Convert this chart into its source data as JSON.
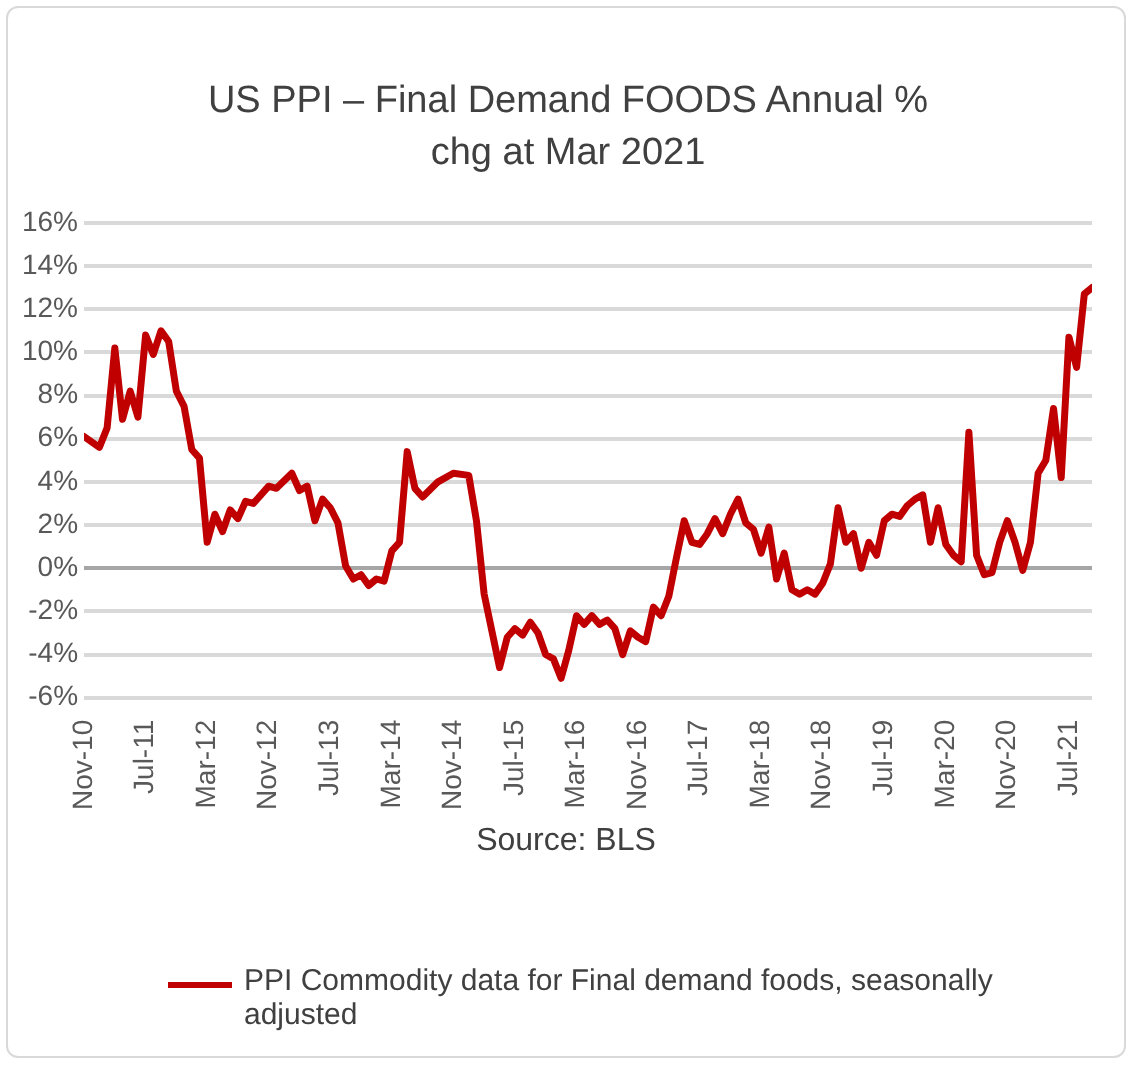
{
  "chart_data": {
    "type": "line",
    "title": "US PPI – Final Demand FOODS Annual % chg at Mar 2021",
    "annotations": [
      "Source: BLS"
    ],
    "x": [
      "2010-11",
      "2011-01",
      "2011-02",
      "2011-03",
      "2011-04",
      "2011-05",
      "2011-06",
      "2011-07",
      "2011-08",
      "2011-09",
      "2011-10",
      "2011-11",
      "2011-12",
      "2012-01",
      "2012-02",
      "2012-03",
      "2012-04",
      "2012-05",
      "2012-06",
      "2012-07",
      "2012-08",
      "2012-09",
      "2012-11",
      "2012-12",
      "2013-02",
      "2013-03",
      "2013-04",
      "2013-05",
      "2013-06",
      "2013-07",
      "2013-08",
      "2013-09",
      "2013-10",
      "2013-11",
      "2013-12",
      "2014-01",
      "2014-02",
      "2014-03",
      "2014-04",
      "2014-05",
      "2014-06",
      "2014-07",
      "2014-09",
      "2014-11",
      "2015-01",
      "2015-02",
      "2015-03",
      "2015-05",
      "2015-06",
      "2015-07",
      "2015-08",
      "2015-09",
      "2015-10",
      "2015-11",
      "2015-12",
      "2016-01",
      "2016-02",
      "2016-03",
      "2016-04",
      "2016-05",
      "2016-06",
      "2016-07",
      "2016-08",
      "2016-09",
      "2016-10",
      "2016-11",
      "2016-12",
      "2017-01",
      "2017-02",
      "2017-03",
      "2017-04",
      "2017-05",
      "2017-06",
      "2017-07",
      "2017-08",
      "2017-09",
      "2017-10",
      "2017-11",
      "2017-12",
      "2018-01",
      "2018-02",
      "2018-03",
      "2018-04",
      "2018-05",
      "2018-06",
      "2018-07",
      "2018-08",
      "2018-09",
      "2018-10",
      "2018-11",
      "2018-12",
      "2019-01",
      "2019-02",
      "2019-03",
      "2019-04",
      "2019-05",
      "2019-06",
      "2019-07",
      "2019-08",
      "2019-09",
      "2019-10",
      "2019-11",
      "2019-12",
      "2020-01",
      "2020-02",
      "2020-03",
      "2020-04",
      "2020-05",
      "2020-06",
      "2020-07",
      "2020-08",
      "2020-09",
      "2020-10",
      "2020-11",
      "2020-12",
      "2021-01",
      "2021-02",
      "2021-03",
      "2021-04",
      "2021-05",
      "2021-06",
      "2021-07",
      "2021-08",
      "2021-09",
      "2021-10"
    ],
    "series": [
      {
        "name": "PPI Commodity data for Final demand foods, seasonally adjusted",
        "color": "#c00000",
        "values": [
          6.1,
          5.6,
          6.5,
          10.2,
          6.9,
          8.2,
          7.0,
          10.8,
          9.9,
          11.0,
          10.5,
          8.2,
          7.5,
          5.5,
          5.1,
          1.2,
          2.5,
          1.7,
          2.7,
          2.3,
          3.1,
          3.0,
          3.8,
          3.7,
          4.4,
          3.6,
          3.8,
          2.2,
          3.2,
          2.8,
          2.1,
          0.1,
          -0.5,
          -0.3,
          -0.8,
          -0.5,
          -0.6,
          0.8,
          1.2,
          5.4,
          3.7,
          3.3,
          4.0,
          4.4,
          4.3,
          2.2,
          -1.2,
          -4.6,
          -3.2,
          -2.8,
          -3.1,
          -2.5,
          -3.0,
          -4.0,
          -4.2,
          -5.1,
          -3.8,
          -2.2,
          -2.6,
          -2.2,
          -2.6,
          -2.4,
          -2.8,
          -4.0,
          -2.9,
          -3.2,
          -3.4,
          -1.8,
          -2.2,
          -1.3,
          0.5,
          2.2,
          1.2,
          1.1,
          1.6,
          2.3,
          1.6,
          2.5,
          3.2,
          2.1,
          1.8,
          0.7,
          1.9,
          -0.5,
          0.7,
          -1.0,
          -1.2,
          -1.0,
          -1.2,
          -0.7,
          0.2,
          2.8,
          1.2,
          1.6,
          0.0,
          1.2,
          0.6,
          2.2,
          2.5,
          2.4,
          2.9,
          3.2,
          3.4,
          1.2,
          2.8,
          1.1,
          0.6,
          0.3,
          6.3,
          0.6,
          -0.3,
          -0.2,
          1.2,
          2.2,
          1.2,
          -0.1,
          1.2,
          4.4,
          5.0,
          7.4,
          4.2,
          10.7,
          9.3,
          12.7,
          13.0
        ]
      }
    ],
    "xlim": [
      "2010-11",
      "2021-10"
    ],
    "xticks": [
      {
        "value": "2010-11",
        "label": "Nov-10"
      },
      {
        "value": "2011-07",
        "label": "Jul-11"
      },
      {
        "value": "2012-03",
        "label": "Mar-12"
      },
      {
        "value": "2012-11",
        "label": "Nov-12"
      },
      {
        "value": "2013-07",
        "label": "Jul-13"
      },
      {
        "value": "2014-03",
        "label": "Mar-14"
      },
      {
        "value": "2014-11",
        "label": "Nov-14"
      },
      {
        "value": "2015-07",
        "label": "Jul-15"
      },
      {
        "value": "2016-03",
        "label": "Mar-16"
      },
      {
        "value": "2016-11",
        "label": "Nov-16"
      },
      {
        "value": "2017-07",
        "label": "Jul-17"
      },
      {
        "value": "2018-03",
        "label": "Mar-18"
      },
      {
        "value": "2018-11",
        "label": "Nov-18"
      },
      {
        "value": "2019-07",
        "label": "Jul-19"
      },
      {
        "value": "2020-03",
        "label": "Mar-20"
      },
      {
        "value": "2020-11",
        "label": "Nov-20"
      },
      {
        "value": "2021-07",
        "label": "Jul-21"
      }
    ],
    "ylim": [
      -6,
      16
    ],
    "yticks": [
      {
        "value": -6,
        "label": "-6%"
      },
      {
        "value": -4,
        "label": "-4%"
      },
      {
        "value": -2,
        "label": "-2%"
      },
      {
        "value": 0,
        "label": "0%"
      },
      {
        "value": 2,
        "label": "2%"
      },
      {
        "value": 4,
        "label": "4%"
      },
      {
        "value": 6,
        "label": "6%"
      },
      {
        "value": 8,
        "label": "8%"
      },
      {
        "value": 10,
        "label": "10%"
      },
      {
        "value": 12,
        "label": "12%"
      },
      {
        "value": 14,
        "label": "14%"
      },
      {
        "value": 16,
        "label": "16%"
      }
    ],
    "grid": "y",
    "legend": "bottom",
    "marker": "none",
    "line_style": "solid"
  }
}
